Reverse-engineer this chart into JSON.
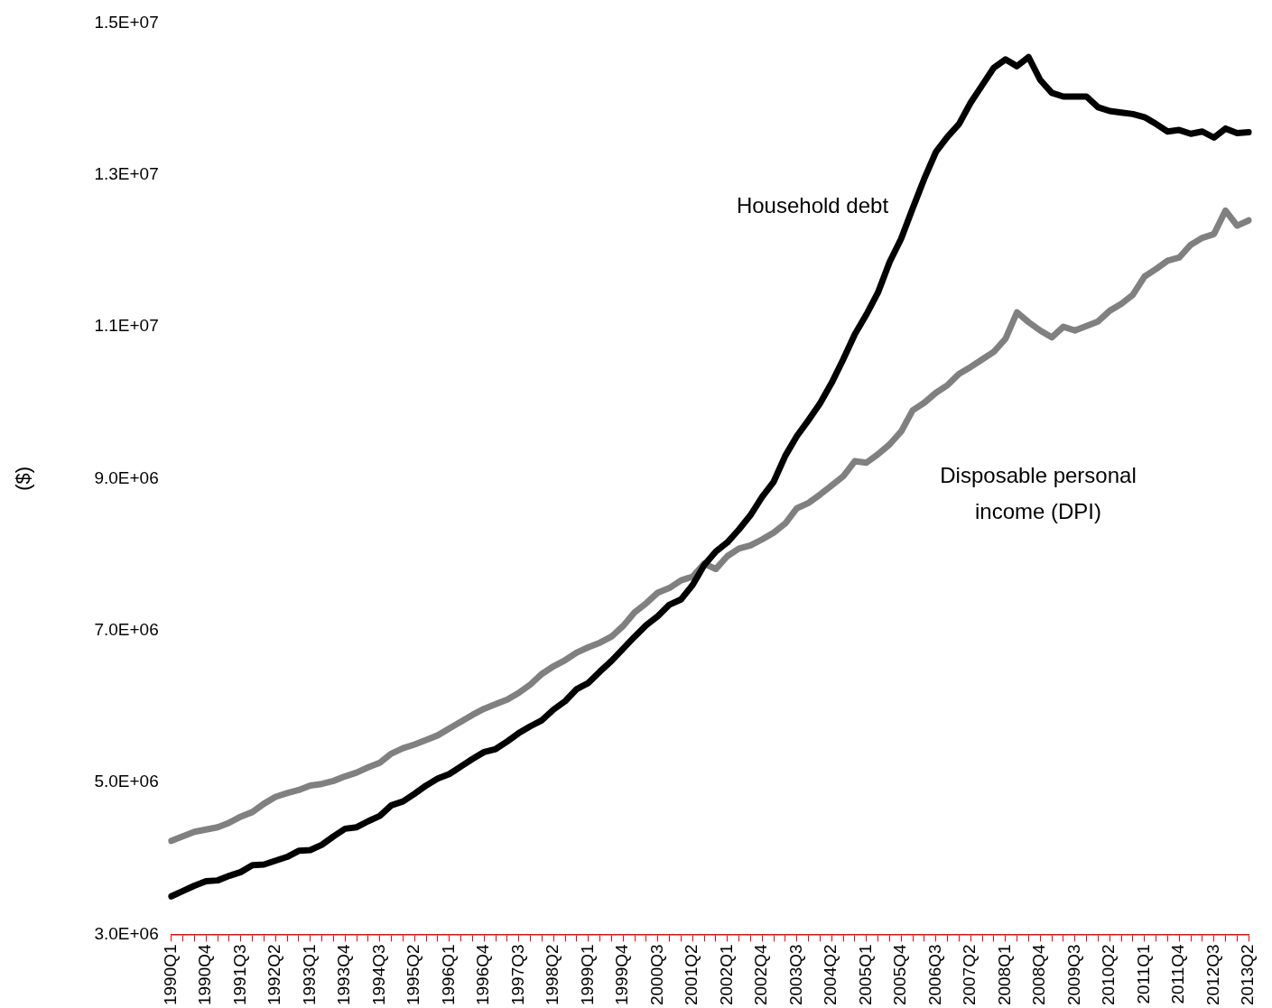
{
  "chart_data": {
    "type": "line",
    "ylabel": "($)",
    "categories": [
      "1990Q1",
      null,
      null,
      "1990Q4",
      null,
      null,
      "1991Q3",
      null,
      null,
      "1992Q2",
      null,
      null,
      "1993Q1",
      null,
      null,
      "1993Q4",
      null,
      null,
      "1994Q3",
      null,
      null,
      "1995Q2",
      null,
      null,
      "1996Q1",
      null,
      null,
      "1996Q4",
      null,
      null,
      "1997Q3",
      null,
      null,
      "1998Q2",
      null,
      null,
      "1999Q1",
      null,
      null,
      "1999Q4",
      null,
      null,
      "2000Q3",
      null,
      null,
      "2001Q2",
      null,
      null,
      "2002Q1",
      null,
      null,
      "2002Q4",
      null,
      null,
      "2003Q3",
      null,
      null,
      "2004Q2",
      null,
      null,
      "2005Q1",
      null,
      null,
      "2005Q4",
      null,
      null,
      "2006Q3",
      null,
      null,
      "2007Q2",
      null,
      null,
      "2008Q1",
      null,
      null,
      "2008Q4",
      null,
      null,
      "2009Q3",
      null,
      null,
      "2010Q2",
      null,
      null,
      "2011Q1",
      null,
      null,
      "2011Q4",
      null,
      null,
      "2012Q3",
      null,
      null,
      "2013Q2"
    ],
    "series": [
      {
        "name": "Household debt",
        "color": "#000000",
        "values": [
          3500000,
          3570000,
          3640000,
          3700000,
          3710000,
          3770000,
          3820000,
          3910000,
          3920000,
          3970000,
          4020000,
          4100000,
          4110000,
          4180000,
          4290000,
          4390000,
          4410000,
          4490000,
          4560000,
          4700000,
          4750000,
          4850000,
          4960000,
          5050000,
          5110000,
          5210000,
          5310000,
          5400000,
          5440000,
          5540000,
          5650000,
          5740000,
          5820000,
          5960000,
          6070000,
          6230000,
          6310000,
          6460000,
          6600000,
          6760000,
          6920000,
          7070000,
          7190000,
          7340000,
          7410000,
          7600000,
          7860000,
          8040000,
          8160000,
          8330000,
          8520000,
          8760000,
          8960000,
          9300000,
          9560000,
          9770000,
          9990000,
          10260000,
          10570000,
          10900000,
          11160000,
          11450000,
          11850000,
          12160000,
          12560000,
          12950000,
          13300000,
          13500000,
          13670000,
          13950000,
          14180000,
          14410000,
          14520000,
          14430000,
          14550000,
          14250000,
          14080000,
          14030000,
          14030000,
          14030000,
          13890000,
          13840000,
          13820000,
          13800000,
          13760000,
          13670000,
          13570000,
          13590000,
          13540000,
          13570000,
          13490000,
          13610000,
          13550000,
          13560000
        ]
      },
      {
        "name": "Disposable personal income (DPI)",
        "color": "#808080",
        "values": [
          4230000,
          4290000,
          4350000,
          4380000,
          4410000,
          4470000,
          4550000,
          4610000,
          4720000,
          4810000,
          4860000,
          4900000,
          4960000,
          4980000,
          5020000,
          5080000,
          5130000,
          5200000,
          5260000,
          5380000,
          5450000,
          5500000,
          5560000,
          5620000,
          5710000,
          5800000,
          5890000,
          5970000,
          6030000,
          6090000,
          6180000,
          6290000,
          6430000,
          6530000,
          6610000,
          6710000,
          6780000,
          6840000,
          6920000,
          7060000,
          7240000,
          7360000,
          7500000,
          7560000,
          7660000,
          7710000,
          7880000,
          7810000,
          7980000,
          8080000,
          8120000,
          8200000,
          8290000,
          8410000,
          8610000,
          8680000,
          8790000,
          8910000,
          9030000,
          9230000,
          9210000,
          9320000,
          9450000,
          9620000,
          9900000,
          10000000,
          10130000,
          10230000,
          10380000,
          10470000,
          10570000,
          10670000,
          10840000,
          11190000,
          11060000,
          10950000,
          10860000,
          11000000,
          10950000,
          11010000,
          11070000,
          11210000,
          11300000,
          11420000,
          11660000,
          11760000,
          11870000,
          11910000,
          12080000,
          12170000,
          12220000,
          12530000,
          12330000,
          12400000
        ]
      }
    ],
    "ylim": [
      3000000,
      15000000
    ],
    "yticks": [
      {
        "value": 3000000,
        "label": "3.0E+06"
      },
      {
        "value": 5000000,
        "label": "5.0E+06"
      },
      {
        "value": 7000000,
        "label": "7.0E+06"
      },
      {
        "value": 9000000,
        "label": "9.0E+06"
      },
      {
        "value": 11000000,
        "label": "1.1E+07"
      },
      {
        "value": 13000000,
        "label": "1.3E+07"
      },
      {
        "value": 15000000,
        "label": "1.5E+07"
      }
    ],
    "grid": false,
    "legend": false,
    "marker": "none",
    "line_style": "solid"
  }
}
